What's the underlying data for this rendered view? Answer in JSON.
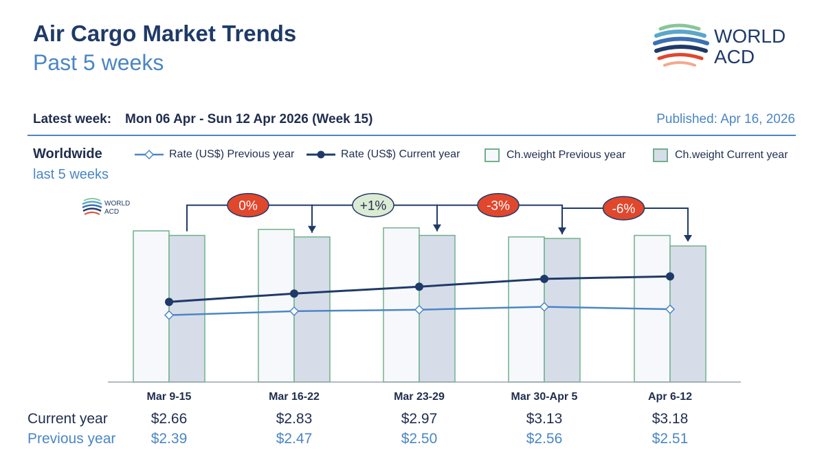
{
  "header": {
    "title": "Air Cargo Market Trends",
    "subtitle": "Past 5 weeks",
    "latest_label": "Latest week:",
    "latest_value": "Mon 06 Apr - Sun 12 Apr 2026 (Week 15)",
    "published": "Published: Apr 16, 2026",
    "logo_line1": "WORLD",
    "logo_line2": "ACD"
  },
  "region": {
    "name": "Worldwide",
    "period": "last 5 weeks"
  },
  "legend": {
    "rate_prev": "Rate (US$) Previous year",
    "rate_cur": "Rate (US$) Current year",
    "weight_prev": "Ch.weight Previous year",
    "weight_cur": "Ch.weight Current year"
  },
  "table": {
    "current_label": "Current year",
    "previous_label": "Previous year"
  },
  "colors": {
    "navy": "#1f3a68",
    "blue": "#4a86c5",
    "green_border": "#6fb08a",
    "bar_prev_fill": "#f6f8fb",
    "bar_cur_fill": "#d6dde9",
    "badge_red": "#e0472d",
    "badge_green": "#dcebd3"
  },
  "chart_data": {
    "type": "bar",
    "categories": [
      "Mar 9-15",
      "Mar 16-22",
      "Mar 23-29",
      "Mar 30-Apr 5",
      "Apr 6-12"
    ],
    "series": [
      {
        "name": "Ch.weight Previous year",
        "values": [
          100,
          101,
          102,
          96,
          97
        ]
      },
      {
        "name": "Ch.weight Current year",
        "values": [
          97,
          96,
          97,
          95,
          90
        ]
      },
      {
        "name": "Rate (US$) Previous year",
        "values": [
          2.39,
          2.47,
          2.5,
          2.56,
          2.51
        ],
        "labels": [
          "$2.39",
          "$2.47",
          "$2.50",
          "$2.56",
          "$2.51"
        ]
      },
      {
        "name": "Rate (US$) Current year",
        "values": [
          2.66,
          2.83,
          2.97,
          3.13,
          3.18
        ],
        "labels": [
          "$2.66",
          "$2.83",
          "$2.97",
          "$3.13",
          "$3.18"
        ]
      }
    ],
    "week_changes": [
      {
        "label": "0%",
        "color": "red"
      },
      {
        "label": "+1%",
        "color": "green"
      },
      {
        "label": "-3%",
        "color": "red"
      },
      {
        "label": "-6%",
        "color": "red"
      }
    ],
    "grid": false
  }
}
